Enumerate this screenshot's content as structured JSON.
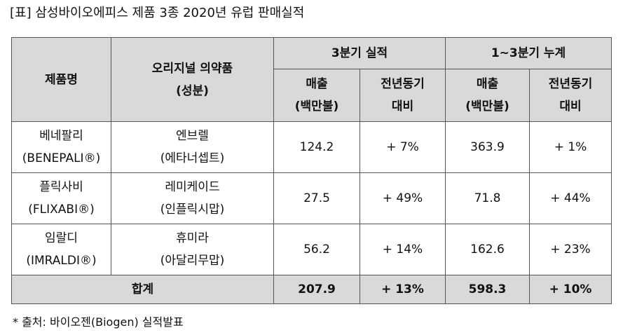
{
  "caption": "[표] 삼성바이오에피스 제품 3종 2020년 유럽 판매실적",
  "header": {
    "product_name": "제품명",
    "original_drug_line1": "오리지널 의약품",
    "original_drug_line2": "(성분)",
    "q3_group": "3분기 실적",
    "ytd_group": "1~3분기 누계",
    "sales_line1": "매출",
    "sales_line2": "(백만불)",
    "yoy_line1": "전년동기",
    "yoy_line2": "대비"
  },
  "rows": [
    {
      "product": "베네팔리",
      "product_en": "(BENEPALI®)",
      "original": "엔브렐",
      "ingredient": "(에타너셉트)",
      "q3_sales": "124.2",
      "q3_yoy": "+ 7%",
      "ytd_sales": "363.9",
      "ytd_yoy": "+ 1%"
    },
    {
      "product": "플릭사비",
      "product_en": "(FLIXABI®)",
      "original": "레미케이드",
      "ingredient": "(인플릭시맙)",
      "q3_sales": "27.5",
      "q3_yoy": "+ 49%",
      "ytd_sales": "71.8",
      "ytd_yoy": "+ 44%"
    },
    {
      "product": "임랄디",
      "product_en": "(IMRALDI®)",
      "original": "휴미라",
      "ingredient": "(아달리무맙)",
      "q3_sales": "56.2",
      "q3_yoy": "+ 14%",
      "ytd_sales": "162.6",
      "ytd_yoy": "+ 23%"
    }
  ],
  "total": {
    "label": "합계",
    "q3_sales": "207.9",
    "q3_yoy": "+ 13%",
    "ytd_sales": "598.3",
    "ytd_yoy": "+ 10%"
  },
  "footnote": "* 출처: 바이오젠(Biogen) 실적발표"
}
